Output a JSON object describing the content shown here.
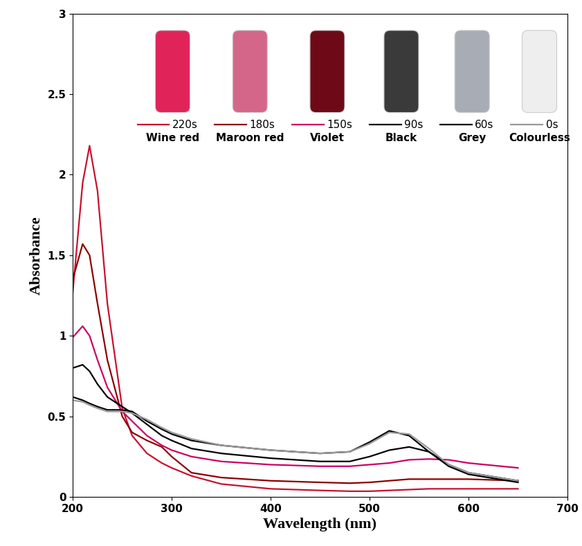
{
  "chart_data": {
    "type": "line",
    "x_label": "Wavelength (nm)",
    "y_label": "Absorbance",
    "x": [
      200,
      210,
      217,
      225,
      235,
      250,
      260,
      275,
      290,
      300,
      320,
      350,
      400,
      450,
      480,
      500,
      520,
      540,
      560,
      580,
      600,
      650
    ],
    "series": [
      {
        "name": "220s",
        "color": "#c8102e",
        "values": [
          1.27,
          1.95,
          2.18,
          1.9,
          1.2,
          0.55,
          0.38,
          0.27,
          0.21,
          0.18,
          0.13,
          0.08,
          0.05,
          0.04,
          0.035,
          0.035,
          0.04,
          0.045,
          0.05,
          0.05,
          0.05,
          0.05
        ]
      },
      {
        "name": "180s",
        "color": "#8b0000",
        "values": [
          1.35,
          1.57,
          1.5,
          1.2,
          0.85,
          0.5,
          0.4,
          0.35,
          0.31,
          0.25,
          0.15,
          0.12,
          0.1,
          0.09,
          0.085,
          0.09,
          0.1,
          0.11,
          0.11,
          0.11,
          0.11,
          0.1
        ]
      },
      {
        "name": "150s",
        "color": "#cc0066",
        "values": [
          0.99,
          1.06,
          1.0,
          0.85,
          0.68,
          0.53,
          0.47,
          0.38,
          0.32,
          0.29,
          0.25,
          0.22,
          0.2,
          0.19,
          0.19,
          0.2,
          0.21,
          0.23,
          0.235,
          0.23,
          0.21,
          0.18
        ]
      },
      {
        "name": "90s",
        "color": "#000000",
        "values": [
          0.8,
          0.82,
          0.78,
          0.7,
          0.62,
          0.56,
          0.52,
          0.45,
          0.38,
          0.35,
          0.3,
          0.27,
          0.24,
          0.22,
          0.22,
          0.25,
          0.29,
          0.31,
          0.28,
          0.2,
          0.15,
          0.1
        ]
      },
      {
        "name": "60s",
        "color": "#000000",
        "values": [
          0.62,
          0.6,
          0.58,
          0.56,
          0.54,
          0.54,
          0.53,
          0.47,
          0.42,
          0.39,
          0.35,
          0.32,
          0.29,
          0.27,
          0.28,
          0.34,
          0.41,
          0.38,
          0.28,
          0.19,
          0.14,
          0.09
        ]
      },
      {
        "name": "0s",
        "color": "#999999",
        "values": [
          0.6,
          0.59,
          0.57,
          0.55,
          0.53,
          0.53,
          0.52,
          0.48,
          0.43,
          0.4,
          0.36,
          0.32,
          0.29,
          0.27,
          0.28,
          0.33,
          0.4,
          0.39,
          0.3,
          0.2,
          0.15,
          0.1
        ]
      }
    ],
    "annotations": [
      "Wine red",
      "Maroon red",
      "Violet",
      "Black",
      "Grey",
      "Colourless"
    ],
    "xlim": [
      200,
      700
    ],
    "xticks": [
      200,
      300,
      400,
      500,
      600,
      700
    ],
    "ylim": [
      0,
      3
    ],
    "yticks": [
      0,
      0.5,
      1,
      1.5,
      2,
      2.5,
      3
    ],
    "grid": false,
    "legend": "upper right"
  }
}
